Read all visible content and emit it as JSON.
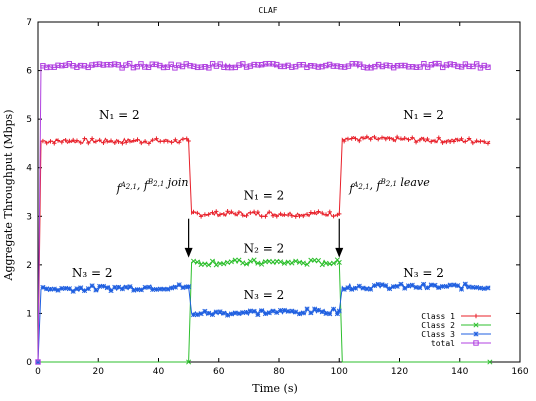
{
  "chart_data": {
    "type": "line",
    "title": "CLAF",
    "xlabel": "Time (s)",
    "ylabel": "Aggregate Throughput (Mbps)",
    "xlim": [
      0,
      160
    ],
    "ylim": [
      0,
      7
    ],
    "xticks": [
      0,
      20,
      40,
      60,
      80,
      100,
      120,
      140,
      160
    ],
    "yticks": [
      0,
      1,
      2,
      3,
      4,
      5,
      6,
      7
    ],
    "grid": false,
    "legend_position": "bottom-right",
    "series": [
      {
        "name": "Class 1",
        "color": "#e8202a",
        "marker": "plus",
        "segments": [
          {
            "x": [
              0,
              1,
              50
            ],
            "y": [
              0,
              4.55,
              4.55
            ]
          },
          {
            "x": [
              50,
              51,
              100
            ],
            "y": [
              4.55,
              3.05,
              3.05
            ]
          },
          {
            "x": [
              100,
              101,
              150
            ],
            "y": [
              3.05,
              4.6,
              4.55
            ]
          }
        ]
      },
      {
        "name": "Class 2",
        "color": "#2dbf2d",
        "marker": "x",
        "segments": [
          {
            "x": [
              0,
              50
            ],
            "y": [
              0,
              0
            ]
          },
          {
            "x": [
              50,
              51,
              100
            ],
            "y": [
              0,
              2.05,
              2.05
            ]
          },
          {
            "x": [
              100,
              101,
              150
            ],
            "y": [
              2.05,
              0,
              0
            ]
          }
        ]
      },
      {
        "name": "Class 3",
        "color": "#1f5fe0",
        "marker": "asterisk",
        "segments": [
          {
            "x": [
              0,
              1,
              50
            ],
            "y": [
              0,
              1.5,
              1.55
            ]
          },
          {
            "x": [
              50,
              51,
              100
            ],
            "y": [
              1.55,
              1.0,
              1.05
            ]
          },
          {
            "x": [
              100,
              101,
              150
            ],
            "y": [
              1.05,
              1.55,
              1.55
            ]
          }
        ]
      },
      {
        "name": "total",
        "color": "#b040e0",
        "marker": "square",
        "segments": [
          {
            "x": [
              0,
              1,
              150
            ],
            "y": [
              0,
              6.1,
              6.1
            ]
          }
        ]
      }
    ],
    "annotations": [
      {
        "text": "N₁ = 2",
        "x": 27,
        "y": 5.0
      },
      {
        "text": "N₁ = 2",
        "x": 75,
        "y": 3.35
      },
      {
        "text": "N₁ = 2",
        "x": 128,
        "y": 5.0
      },
      {
        "text": "N₂ = 2",
        "x": 75,
        "y": 2.25
      },
      {
        "text": "N₃ = 2",
        "x": 75,
        "y": 1.3
      },
      {
        "text": "N₃ = 2",
        "x": 18,
        "y": 1.75
      },
      {
        "text": "N₃ = 2",
        "x": 128,
        "y": 1.75
      }
    ],
    "events": [
      {
        "x": 50,
        "text_main": "f",
        "text_suffix": "join"
      },
      {
        "x": 100,
        "text_main": "f",
        "text_suffix": "leave"
      }
    ]
  }
}
